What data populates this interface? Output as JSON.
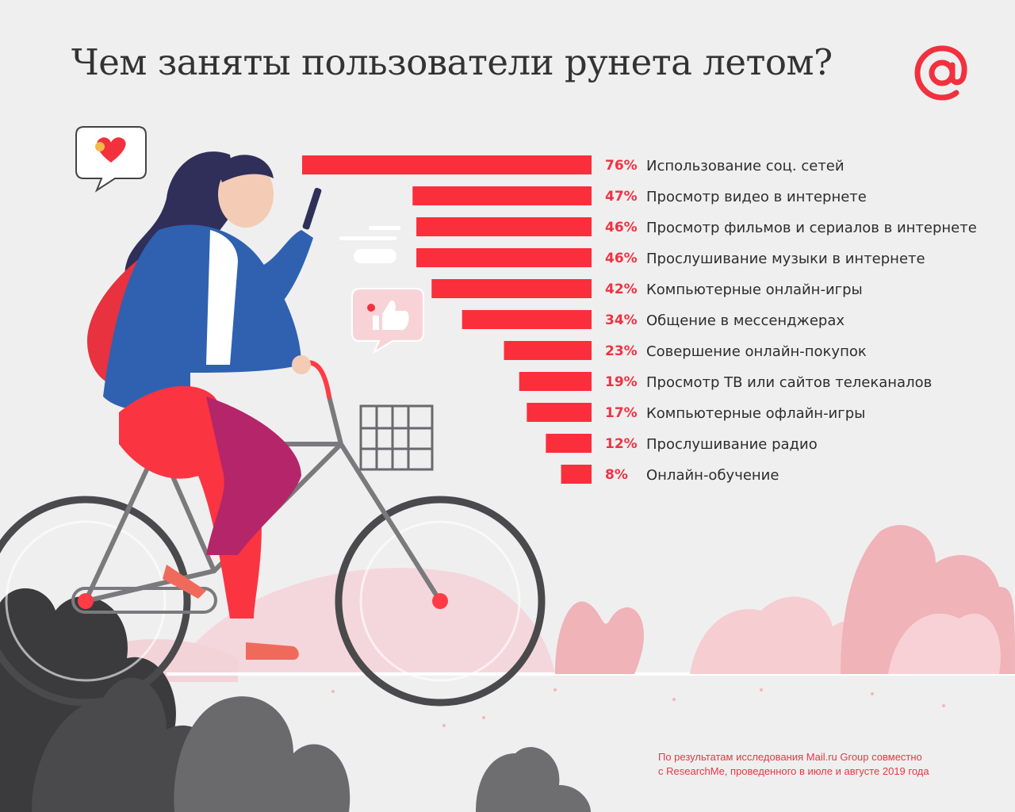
{
  "title": "Чем заняты пользователи рунета летом?",
  "logo": {
    "icon": "at-sign-icon",
    "color": "#f1313e"
  },
  "colors": {
    "bar": "#fb2e3c",
    "percent": "#f03242",
    "label": "#2d2d2d"
  },
  "chart_data": {
    "type": "bar",
    "orientation": "horizontal",
    "categories": [
      "Использование соц. сетей",
      "Просмотр видео в интернете",
      "Просмотр фильмов и сериалов в интернете",
      "Прослушивание музыки в интернете",
      "Компьютерные онлайн-игры",
      "Общение в мессенджерах",
      "Совершение онлайн-покупок",
      "Просмотр ТВ или сайтов телеканалов",
      "Компьютерные офлайн-игры",
      "Прослушивание радио",
      "Онлайн-обучение"
    ],
    "values": [
      76,
      47,
      46,
      46,
      42,
      34,
      23,
      19,
      17,
      12,
      8
    ],
    "value_labels": [
      "76%",
      "47%",
      "46%",
      "46%",
      "42%",
      "34%",
      "23%",
      "19%",
      "17%",
      "12%",
      "8%"
    ],
    "unit": "%",
    "xlim": [
      0,
      76
    ],
    "grid": false,
    "legend": "none"
  },
  "footnote": {
    "line1": "По результатам исследования Mail.ru Group совместно",
    "line2": "с ResearchMe, проведенного в июле и августе 2019 года"
  }
}
